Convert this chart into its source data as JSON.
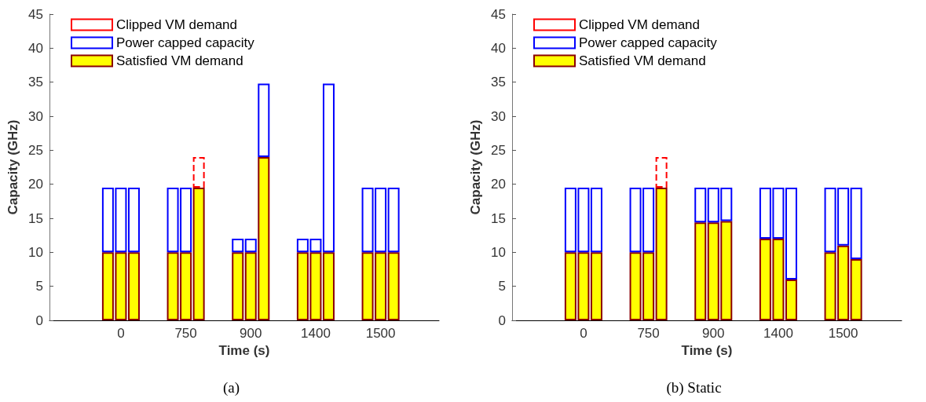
{
  "chart_data": [
    {
      "type": "bar",
      "title": "(a)",
      "xlabel": "Time (s)",
      "ylabel": "Capacity (GHz)",
      "stacked": true,
      "categories": [
        null,
        null,
        null,
        null,
        null,
        "0",
        null,
        null,
        null,
        null,
        "750",
        null,
        null,
        null,
        null,
        "900",
        null,
        null,
        null,
        null,
        "1400",
        null,
        null,
        null,
        null,
        "1500",
        null,
        null,
        null,
        null
      ],
      "ylim": [
        0,
        45
      ],
      "yticks": [
        0,
        5,
        10,
        15,
        20,
        25,
        30,
        35,
        40,
        45
      ],
      "grid": false,
      "legend": "top left",
      "series": [
        {
          "name": "Satisfied VM demand",
          "color": "#ffff00",
          "values": [
            null,
            null,
            null,
            null,
            10,
            10,
            10,
            null,
            null,
            10,
            10,
            19.5,
            null,
            null,
            10,
            10,
            24,
            null,
            null,
            10,
            10,
            10,
            null,
            null,
            10,
            10,
            10,
            null,
            null,
            null
          ]
        },
        {
          "name": "Power capped capacity",
          "color": "#0000ff",
          "line_style": "solid",
          "values": [
            null,
            null,
            null,
            null,
            9.5,
            9.5,
            9.5,
            null,
            null,
            9.5,
            9.5,
            null,
            null,
            null,
            2,
            2,
            10.8,
            null,
            null,
            2,
            2,
            24.8,
            null,
            null,
            9.5,
            9.5,
            9.5,
            null,
            null,
            null
          ]
        },
        {
          "name": "Clipped VM demand",
          "color": "#ff0000",
          "line_style": "dashed",
          "values": [
            null,
            null,
            null,
            null,
            null,
            null,
            null,
            null,
            null,
            null,
            null,
            4.5,
            null,
            null,
            null,
            null,
            null,
            null,
            null,
            null,
            null,
            null,
            null,
            null,
            null,
            null,
            null,
            null,
            null,
            null
          ]
        }
      ]
    },
    {
      "type": "bar",
      "title": "(b) Static",
      "xlabel": "Time (s)",
      "ylabel": "Capacity (GHz)",
      "stacked": true,
      "categories": [
        null,
        null,
        null,
        null,
        null,
        "0",
        null,
        null,
        null,
        null,
        "750",
        null,
        null,
        null,
        null,
        "900",
        null,
        null,
        null,
        null,
        "1400",
        null,
        null,
        null,
        null,
        "1500",
        null,
        null,
        null,
        null
      ],
      "ylim": [
        0,
        45
      ],
      "yticks": [
        0,
        5,
        10,
        15,
        20,
        25,
        30,
        35,
        40,
        45
      ],
      "grid": false,
      "legend": "top left",
      "series": [
        {
          "name": "Satisfied VM demand",
          "color": "#ffff00",
          "values": [
            null,
            null,
            null,
            null,
            10,
            10,
            10,
            null,
            null,
            10,
            10,
            19.5,
            null,
            null,
            14.4,
            14.4,
            14.6,
            null,
            null,
            12,
            12,
            6,
            null,
            null,
            10,
            11,
            9,
            null,
            null,
            null
          ]
        },
        {
          "name": "Power capped capacity",
          "color": "#0000ff",
          "line_style": "solid",
          "values": [
            null,
            null,
            null,
            null,
            9.5,
            9.5,
            9.5,
            null,
            null,
            9.5,
            9.5,
            null,
            null,
            null,
            5.1,
            5.1,
            4.9,
            null,
            null,
            7.5,
            7.5,
            13.5,
            null,
            null,
            9.5,
            8.5,
            10.5,
            null,
            null,
            null
          ]
        },
        {
          "name": "Clipped VM demand",
          "color": "#ff0000",
          "line_style": "dashed",
          "values": [
            null,
            null,
            null,
            null,
            null,
            null,
            null,
            null,
            null,
            null,
            null,
            4.5,
            null,
            null,
            null,
            null,
            null,
            null,
            null,
            null,
            null,
            null,
            null,
            null,
            null,
            null,
            null,
            null,
            null,
            null
          ]
        }
      ]
    }
  ]
}
